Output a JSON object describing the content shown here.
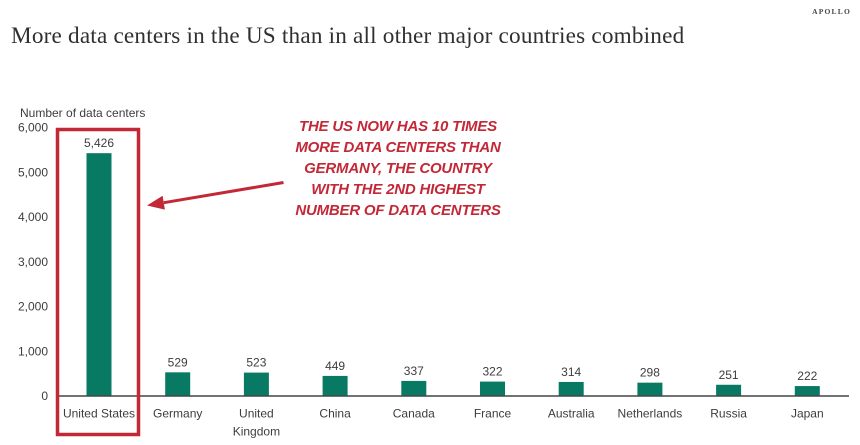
{
  "logo": "APOLLO",
  "title": "More data centers in the US than in all other major countries combined",
  "chart_data": {
    "type": "bar",
    "title": "More data centers in the US than in all other major countries combined",
    "ylabel": "Number of data centers",
    "xlabel": "",
    "categories": [
      "United States",
      "Germany",
      "United Kingdom",
      "China",
      "Canada",
      "France",
      "Australia",
      "Netherlands",
      "Russia",
      "Japan"
    ],
    "xtick_display": [
      "United States",
      "Germany",
      "United\nKingdom",
      "China",
      "Canada",
      "France",
      "Australia",
      "Netherlands",
      "Russia",
      "Japan"
    ],
    "values": [
      5426,
      529,
      523,
      449,
      337,
      322,
      314,
      298,
      251,
      222
    ],
    "value_labels": [
      "5,426",
      "529",
      "523",
      "449",
      "337",
      "322",
      "314",
      "298",
      "251",
      "222"
    ],
    "ylim": [
      0,
      6000
    ],
    "yticks": [
      0,
      1000,
      2000,
      3000,
      4000,
      5000,
      6000
    ],
    "ytick_labels": [
      "0",
      "1,000",
      "2,000",
      "3,000",
      "4,000",
      "5,000",
      "6,000"
    ],
    "grid": false,
    "legend": null,
    "bar_color": "#087a64",
    "highlighted_category": "United States",
    "annotation": {
      "text": "THE US NOW HAS 10 TIMES\nMORE DATA CENTERS THAN\nGERMANY, THE COUNTRY\nWITH THE 2ND HIGHEST\nNUMBER OF DATA CENTERS",
      "color": "#c32837"
    }
  },
  "colors": {
    "bar": "#087a64",
    "highlight_red": "#c32837",
    "axis_line": "#454545",
    "text": "#3d3d3d",
    "title": "#303030"
  }
}
